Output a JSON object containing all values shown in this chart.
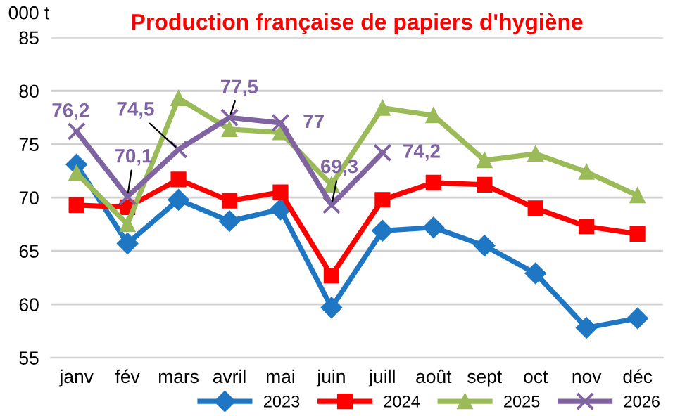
{
  "chart_data": {
    "type": "line",
    "title": "Production française de papiers d'hygiène",
    "ylabel": "000 t",
    "categories": [
      "janv",
      "fév",
      "mars",
      "avril",
      "mai",
      "juin",
      "juill",
      "août",
      "sept",
      "oct",
      "nov",
      "déc"
    ],
    "series": [
      {
        "name": "2023",
        "color": "#1f77c4",
        "marker": "diamond",
        "values": [
          73.1,
          65.7,
          69.8,
          67.8,
          68.9,
          59.7,
          66.9,
          67.2,
          65.5,
          62.9,
          57.8,
          58.7
        ]
      },
      {
        "name": "2024",
        "color": "#ff0000",
        "marker": "square",
        "values": [
          69.3,
          69.1,
          71.7,
          69.7,
          70.5,
          62.7,
          69.8,
          71.4,
          71.2,
          69.0,
          67.3,
          66.6
        ]
      },
      {
        "name": "2025",
        "color": "#9bbb59",
        "marker": "triangle",
        "values": [
          72.3,
          67.5,
          79.3,
          76.4,
          76.1,
          71.2,
          78.4,
          77.7,
          73.5,
          74.1,
          72.4,
          70.2
        ]
      },
      {
        "name": "2026",
        "color": "#8064a2",
        "marker": "cross",
        "values": [
          76.2,
          70.1,
          74.5,
          77.5,
          77,
          69.3,
          74.2,
          null,
          null,
          null,
          null,
          null
        ],
        "value_labels": [
          "76,2",
          "70,1",
          "74,5",
          "77,5",
          "77",
          "69,3",
          "74,2",
          null,
          null,
          null,
          null,
          null
        ]
      }
    ],
    "ylim": [
      55,
      85
    ],
    "yticks": [
      55,
      60,
      65,
      70,
      75,
      80,
      85
    ],
    "grid": "y",
    "legend": "bottom right",
    "line_style": "solid"
  }
}
